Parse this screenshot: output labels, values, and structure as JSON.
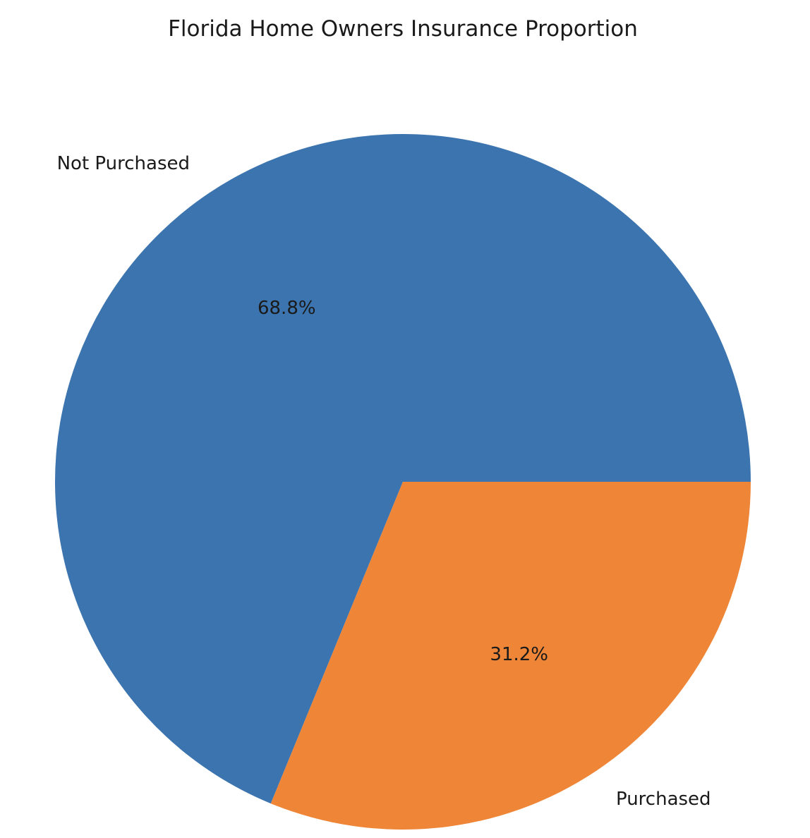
{
  "chart_data": {
    "type": "pie",
    "title": "Florida Home Owners Insurance Proportion",
    "slices": [
      {
        "label": "Not Purchased",
        "value": 68.8,
        "pct_label": "68.8%",
        "color": "#3b74ae"
      },
      {
        "label": "Purchased",
        "value": 31.2,
        "pct_label": "31.2%",
        "color": "#ee8537"
      }
    ],
    "start_angle_deg": 0,
    "direction": "counterclockwise"
  }
}
